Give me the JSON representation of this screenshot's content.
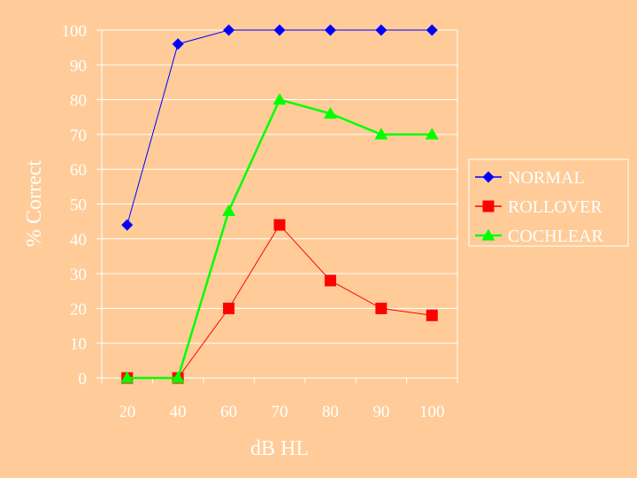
{
  "chart_data": {
    "type": "line",
    "categories": [
      "20",
      "40",
      "60",
      "70",
      "80",
      "90",
      "100"
    ],
    "series": [
      {
        "name": "NORMAL",
        "values": [
          44,
          96,
          100,
          100,
          100,
          100,
          100
        ],
        "color": "#0000FF",
        "marker": "diamond"
      },
      {
        "name": "ROLLOVER",
        "values": [
          0,
          0,
          20,
          44,
          28,
          20,
          18
        ],
        "color": "#FF0000",
        "marker": "square"
      },
      {
        "name": "COCHLEAR",
        "values": [
          0,
          0,
          48,
          80,
          76,
          70,
          70
        ],
        "color": "#00FF00",
        "marker": "triangle"
      }
    ],
    "xlabel": "dB HL",
    "ylabel": "% Correct",
    "ylim": [
      0,
      100
    ],
    "yticks": [
      0,
      10,
      20,
      30,
      40,
      50,
      60,
      70,
      80,
      90,
      100
    ],
    "grid": true,
    "legend": "right",
    "colors": {
      "background": "#FFCC99",
      "gridlines": "#FFFFFF",
      "text": "#FFFFFF"
    }
  }
}
